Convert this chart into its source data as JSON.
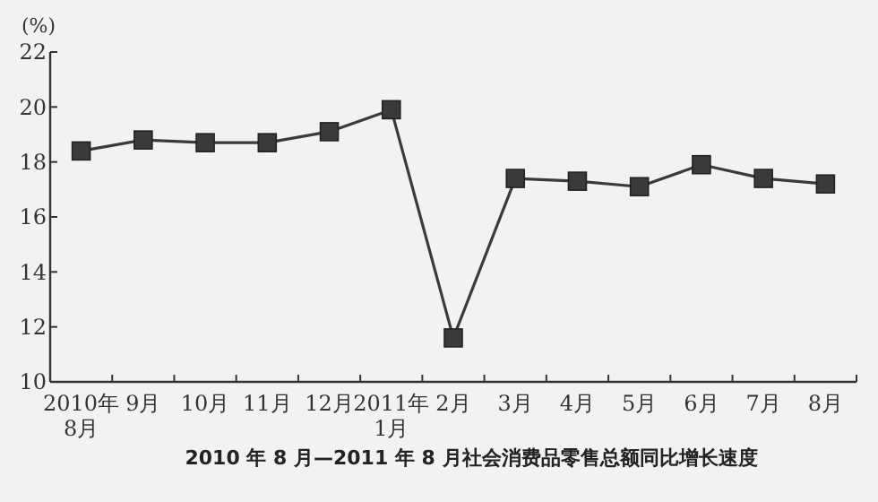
{
  "chart_data": {
    "type": "line",
    "title": "2010 年 8 月—2011 年 8 月社会消费品零售总额同比增长速度",
    "ylabel": "(%)",
    "categories": [
      "2010年\n8月",
      "9月",
      "10月",
      "11月",
      "12月",
      "2011年\n1月",
      "2月",
      "3月",
      "4月",
      "5月",
      "6月",
      "7月",
      "8月"
    ],
    "series": [
      {
        "color": "#3a3a3a",
        "values": [
          18.4,
          18.8,
          18.7,
          18.7,
          19.1,
          19.9,
          11.6,
          17.4,
          17.3,
          17.1,
          17.9,
          17.4,
          17.2
        ]
      }
    ],
    "ylim": [
      10,
      22
    ],
    "yticks": [
      10,
      12,
      14,
      16,
      18,
      20,
      22
    ],
    "marker": "square",
    "grid": false
  }
}
